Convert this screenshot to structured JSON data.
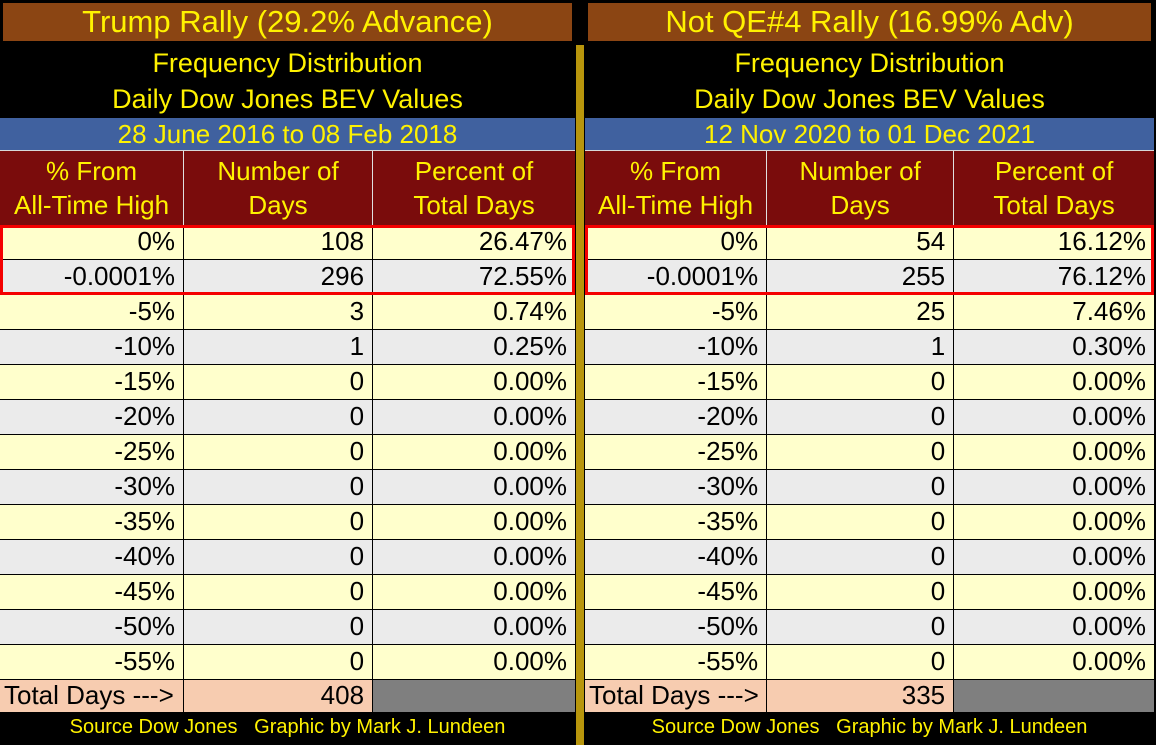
{
  "colors": {
    "title_brown": "#8B4513",
    "accent_yellow": "#FFF200",
    "date_blue": "#40619F",
    "header_dark_red": "#7A0C0C",
    "row_light_yellow": "#FFFFCC",
    "row_light_gray": "#EBEBEB",
    "total_salmon": "#F7CCB0",
    "empty_cell_gray": "#7F7F7F",
    "divider_gold": "#B8960C",
    "highlight_red": "#F40000"
  },
  "chart_data": [
    {
      "type": "table",
      "title": "Trump Rally (29.2% Advance)",
      "subtitle_line1": "Frequency Distribution",
      "subtitle_line2": "Daily Dow Jones BEV Values",
      "date_range": "28 June 2016 to 08 Feb 2018",
      "columns": [
        {
          "line1": "% From",
          "line2": "All-Time High"
        },
        {
          "line1": "Number of",
          "line2": "Days"
        },
        {
          "line1": "Percent of",
          "line2": "Total Days"
        }
      ],
      "categories": [
        "0%",
        "-0.0001%",
        "-5%",
        "-10%",
        "-15%",
        "-20%",
        "-25%",
        "-30%",
        "-35%",
        "-40%",
        "-45%",
        "-50%",
        "-55%"
      ],
      "days": [
        108,
        296,
        3,
        1,
        0,
        0,
        0,
        0,
        0,
        0,
        0,
        0,
        0
      ],
      "percent_of_total": [
        "26.47%",
        "72.55%",
        "0.74%",
        "0.25%",
        "0.00%",
        "0.00%",
        "0.00%",
        "0.00%",
        "0.00%",
        "0.00%",
        "0.00%",
        "0.00%",
        "0.00%"
      ],
      "highlighted_rows": [
        0,
        1
      ],
      "total_label": "Total Days --->",
      "total_days": 408,
      "source_note": "Source Dow Jones   Graphic by Mark J. Lundeen"
    },
    {
      "type": "table",
      "title": "Not QE#4 Rally (16.99% Adv)",
      "subtitle_line1": "Frequency Distribution",
      "subtitle_line2": "Daily Dow Jones BEV Values",
      "date_range": "12 Nov 2020 to 01 Dec 2021",
      "columns": [
        {
          "line1": "% From",
          "line2": "All-Time High"
        },
        {
          "line1": "Number of",
          "line2": "Days"
        },
        {
          "line1": "Percent of",
          "line2": "Total Days"
        }
      ],
      "categories": [
        "0%",
        "-0.0001%",
        "-5%",
        "-10%",
        "-15%",
        "-20%",
        "-25%",
        "-30%",
        "-35%",
        "-40%",
        "-45%",
        "-50%",
        "-55%"
      ],
      "days": [
        54,
        255,
        25,
        1,
        0,
        0,
        0,
        0,
        0,
        0,
        0,
        0,
        0
      ],
      "percent_of_total": [
        "16.12%",
        "76.12%",
        "7.46%",
        "0.30%",
        "0.00%",
        "0.00%",
        "0.00%",
        "0.00%",
        "0.00%",
        "0.00%",
        "0.00%",
        "0.00%",
        "0.00%"
      ],
      "highlighted_rows": [
        0,
        1
      ],
      "total_label": "Total Days --->",
      "total_days": 335,
      "source_note": "Source Dow Jones   Graphic by Mark J. Lundeen"
    }
  ]
}
